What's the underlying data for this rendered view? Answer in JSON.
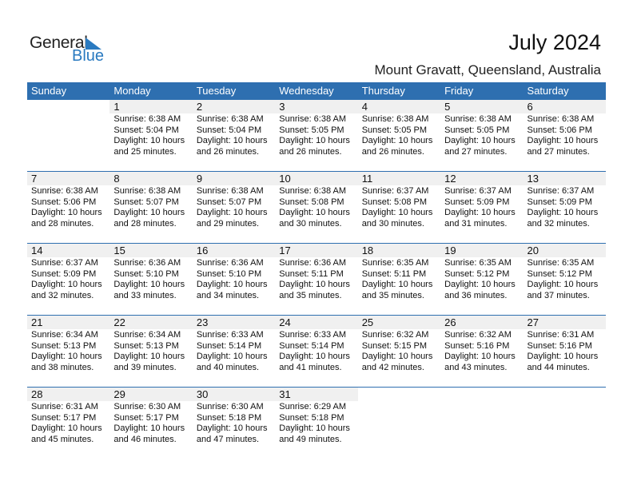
{
  "logo": {
    "text_general": "General",
    "text_blue": "Blue"
  },
  "header": {
    "title": "July 2024",
    "location": "Mount Gravatt, Queensland, Australia"
  },
  "colors": {
    "accent": "#2e6fb0",
    "day_row": "#f0f0f0"
  },
  "weekdays": [
    "Sunday",
    "Monday",
    "Tuesday",
    "Wednesday",
    "Thursday",
    "Friday",
    "Saturday"
  ],
  "weeks": [
    [
      null,
      {
        "day": "1",
        "sunrise": "Sunrise: 6:38 AM",
        "sunset": "Sunset: 5:04 PM",
        "daylight1": "Daylight: 10 hours",
        "daylight2": "and 25 minutes."
      },
      {
        "day": "2",
        "sunrise": "Sunrise: 6:38 AM",
        "sunset": "Sunset: 5:04 PM",
        "daylight1": "Daylight: 10 hours",
        "daylight2": "and 26 minutes."
      },
      {
        "day": "3",
        "sunrise": "Sunrise: 6:38 AM",
        "sunset": "Sunset: 5:05 PM",
        "daylight1": "Daylight: 10 hours",
        "daylight2": "and 26 minutes."
      },
      {
        "day": "4",
        "sunrise": "Sunrise: 6:38 AM",
        "sunset": "Sunset: 5:05 PM",
        "daylight1": "Daylight: 10 hours",
        "daylight2": "and 26 minutes."
      },
      {
        "day": "5",
        "sunrise": "Sunrise: 6:38 AM",
        "sunset": "Sunset: 5:05 PM",
        "daylight1": "Daylight: 10 hours",
        "daylight2": "and 27 minutes."
      },
      {
        "day": "6",
        "sunrise": "Sunrise: 6:38 AM",
        "sunset": "Sunset: 5:06 PM",
        "daylight1": "Daylight: 10 hours",
        "daylight2": "and 27 minutes."
      }
    ],
    [
      {
        "day": "7",
        "sunrise": "Sunrise: 6:38 AM",
        "sunset": "Sunset: 5:06 PM",
        "daylight1": "Daylight: 10 hours",
        "daylight2": "and 28 minutes."
      },
      {
        "day": "8",
        "sunrise": "Sunrise: 6:38 AM",
        "sunset": "Sunset: 5:07 PM",
        "daylight1": "Daylight: 10 hours",
        "daylight2": "and 28 minutes."
      },
      {
        "day": "9",
        "sunrise": "Sunrise: 6:38 AM",
        "sunset": "Sunset: 5:07 PM",
        "daylight1": "Daylight: 10 hours",
        "daylight2": "and 29 minutes."
      },
      {
        "day": "10",
        "sunrise": "Sunrise: 6:38 AM",
        "sunset": "Sunset: 5:08 PM",
        "daylight1": "Daylight: 10 hours",
        "daylight2": "and 30 minutes."
      },
      {
        "day": "11",
        "sunrise": "Sunrise: 6:37 AM",
        "sunset": "Sunset: 5:08 PM",
        "daylight1": "Daylight: 10 hours",
        "daylight2": "and 30 minutes."
      },
      {
        "day": "12",
        "sunrise": "Sunrise: 6:37 AM",
        "sunset": "Sunset: 5:09 PM",
        "daylight1": "Daylight: 10 hours",
        "daylight2": "and 31 minutes."
      },
      {
        "day": "13",
        "sunrise": "Sunrise: 6:37 AM",
        "sunset": "Sunset: 5:09 PM",
        "daylight1": "Daylight: 10 hours",
        "daylight2": "and 32 minutes."
      }
    ],
    [
      {
        "day": "14",
        "sunrise": "Sunrise: 6:37 AM",
        "sunset": "Sunset: 5:09 PM",
        "daylight1": "Daylight: 10 hours",
        "daylight2": "and 32 minutes."
      },
      {
        "day": "15",
        "sunrise": "Sunrise: 6:36 AM",
        "sunset": "Sunset: 5:10 PM",
        "daylight1": "Daylight: 10 hours",
        "daylight2": "and 33 minutes."
      },
      {
        "day": "16",
        "sunrise": "Sunrise: 6:36 AM",
        "sunset": "Sunset: 5:10 PM",
        "daylight1": "Daylight: 10 hours",
        "daylight2": "and 34 minutes."
      },
      {
        "day": "17",
        "sunrise": "Sunrise: 6:36 AM",
        "sunset": "Sunset: 5:11 PM",
        "daylight1": "Daylight: 10 hours",
        "daylight2": "and 35 minutes."
      },
      {
        "day": "18",
        "sunrise": "Sunrise: 6:35 AM",
        "sunset": "Sunset: 5:11 PM",
        "daylight1": "Daylight: 10 hours",
        "daylight2": "and 35 minutes."
      },
      {
        "day": "19",
        "sunrise": "Sunrise: 6:35 AM",
        "sunset": "Sunset: 5:12 PM",
        "daylight1": "Daylight: 10 hours",
        "daylight2": "and 36 minutes."
      },
      {
        "day": "20",
        "sunrise": "Sunrise: 6:35 AM",
        "sunset": "Sunset: 5:12 PM",
        "daylight1": "Daylight: 10 hours",
        "daylight2": "and 37 minutes."
      }
    ],
    [
      {
        "day": "21",
        "sunrise": "Sunrise: 6:34 AM",
        "sunset": "Sunset: 5:13 PM",
        "daylight1": "Daylight: 10 hours",
        "daylight2": "and 38 minutes."
      },
      {
        "day": "22",
        "sunrise": "Sunrise: 6:34 AM",
        "sunset": "Sunset: 5:13 PM",
        "daylight1": "Daylight: 10 hours",
        "daylight2": "and 39 minutes."
      },
      {
        "day": "23",
        "sunrise": "Sunrise: 6:33 AM",
        "sunset": "Sunset: 5:14 PM",
        "daylight1": "Daylight: 10 hours",
        "daylight2": "and 40 minutes."
      },
      {
        "day": "24",
        "sunrise": "Sunrise: 6:33 AM",
        "sunset": "Sunset: 5:14 PM",
        "daylight1": "Daylight: 10 hours",
        "daylight2": "and 41 minutes."
      },
      {
        "day": "25",
        "sunrise": "Sunrise: 6:32 AM",
        "sunset": "Sunset: 5:15 PM",
        "daylight1": "Daylight: 10 hours",
        "daylight2": "and 42 minutes."
      },
      {
        "day": "26",
        "sunrise": "Sunrise: 6:32 AM",
        "sunset": "Sunset: 5:16 PM",
        "daylight1": "Daylight: 10 hours",
        "daylight2": "and 43 minutes."
      },
      {
        "day": "27",
        "sunrise": "Sunrise: 6:31 AM",
        "sunset": "Sunset: 5:16 PM",
        "daylight1": "Daylight: 10 hours",
        "daylight2": "and 44 minutes."
      }
    ],
    [
      {
        "day": "28",
        "sunrise": "Sunrise: 6:31 AM",
        "sunset": "Sunset: 5:17 PM",
        "daylight1": "Daylight: 10 hours",
        "daylight2": "and 45 minutes."
      },
      {
        "day": "29",
        "sunrise": "Sunrise: 6:30 AM",
        "sunset": "Sunset: 5:17 PM",
        "daylight1": "Daylight: 10 hours",
        "daylight2": "and 46 minutes."
      },
      {
        "day": "30",
        "sunrise": "Sunrise: 6:30 AM",
        "sunset": "Sunset: 5:18 PM",
        "daylight1": "Daylight: 10 hours",
        "daylight2": "and 47 minutes."
      },
      {
        "day": "31",
        "sunrise": "Sunrise: 6:29 AM",
        "sunset": "Sunset: 5:18 PM",
        "daylight1": "Daylight: 10 hours",
        "daylight2": "and 49 minutes."
      },
      null,
      null,
      null
    ]
  ]
}
